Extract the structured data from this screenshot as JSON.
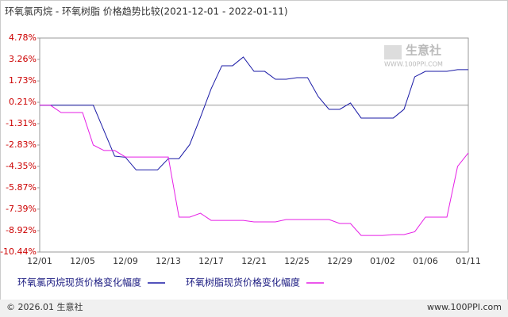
{
  "chart_data": {
    "type": "line",
    "title": "环氧氯丙烷 - 环氧树脂 价格趋势比较(2021-12-01 - 2022-01-11)",
    "categories": [
      "12/01",
      null,
      null,
      null,
      "12/05",
      null,
      null,
      null,
      "12/09",
      null,
      null,
      null,
      "12/13",
      null,
      null,
      null,
      "12/17",
      null,
      null,
      null,
      "12/21",
      null,
      null,
      null,
      "12/25",
      null,
      null,
      null,
      "12/29",
      null,
      null,
      null,
      "01/02",
      null,
      null,
      null,
      "01/06",
      null,
      null,
      null,
      "01/11"
    ],
    "series": [
      {
        "name": "环氧氯丙烷现货价格变化幅度",
        "color": "#1a1aa6",
        "values": [
          0,
          0,
          0,
          0,
          0,
          0,
          -1.81,
          -3.62,
          -3.7,
          -4.6,
          -4.6,
          -4.6,
          -3.8,
          -3.8,
          -2.8,
          -0.86,
          1.17,
          2.81,
          2.81,
          3.43,
          2.41,
          2.41,
          1.85,
          1.85,
          1.96,
          1.96,
          0.61,
          -0.29,
          -0.29,
          0.16,
          -0.91,
          -0.91,
          -0.91,
          -0.91,
          -0.29,
          2.02,
          2.41,
          2.41,
          2.41,
          2.53,
          2.53
        ]
      },
      {
        "name": "环氧树脂现货价格变化幅度",
        "color": "#e61ee6",
        "values": [
          0,
          0,
          -0.52,
          -0.52,
          -0.52,
          -2.83,
          -3.22,
          -3.22,
          -3.68,
          -3.68,
          -3.68,
          -3.68,
          -3.68,
          -7.96,
          -7.96,
          -7.68,
          -8.19,
          -8.19,
          -8.19,
          -8.19,
          -8.3,
          -8.3,
          -8.3,
          -8.13,
          -8.13,
          -8.13,
          -8.13,
          -8.13,
          -8.41,
          -8.41,
          -9.26,
          -9.26,
          -9.26,
          -9.2,
          -9.2,
          -9.0,
          -7.96,
          -7.96,
          -7.96,
          -4.35,
          -3.39
        ]
      }
    ],
    "ylim": [
      -10.44,
      4.78
    ],
    "yticks": [
      {
        "value": 4.78,
        "label": "4.78%"
      },
      {
        "value": 3.26,
        "label": "3.26%"
      },
      {
        "value": 1.73,
        "label": "1.73%"
      },
      {
        "value": 0.21,
        "label": "0.21%"
      },
      {
        "value": -1.31,
        "label": "-1.31%"
      },
      {
        "value": -2.83,
        "label": "-2.83%"
      },
      {
        "value": -4.35,
        "label": "-4.35%"
      },
      {
        "value": -5.87,
        "label": "-5.87%"
      },
      {
        "value": -7.39,
        "label": "-7.39%"
      },
      {
        "value": -8.92,
        "label": "-8.92%"
      },
      {
        "value": -10.44,
        "label": "-10.44%"
      }
    ]
  },
  "watermark": {
    "brand": "生意社",
    "site": "WWW.100PPI.COM"
  },
  "footer": {
    "copyright": "© 2026.01 生意社",
    "site": "www.100PPI.com"
  }
}
